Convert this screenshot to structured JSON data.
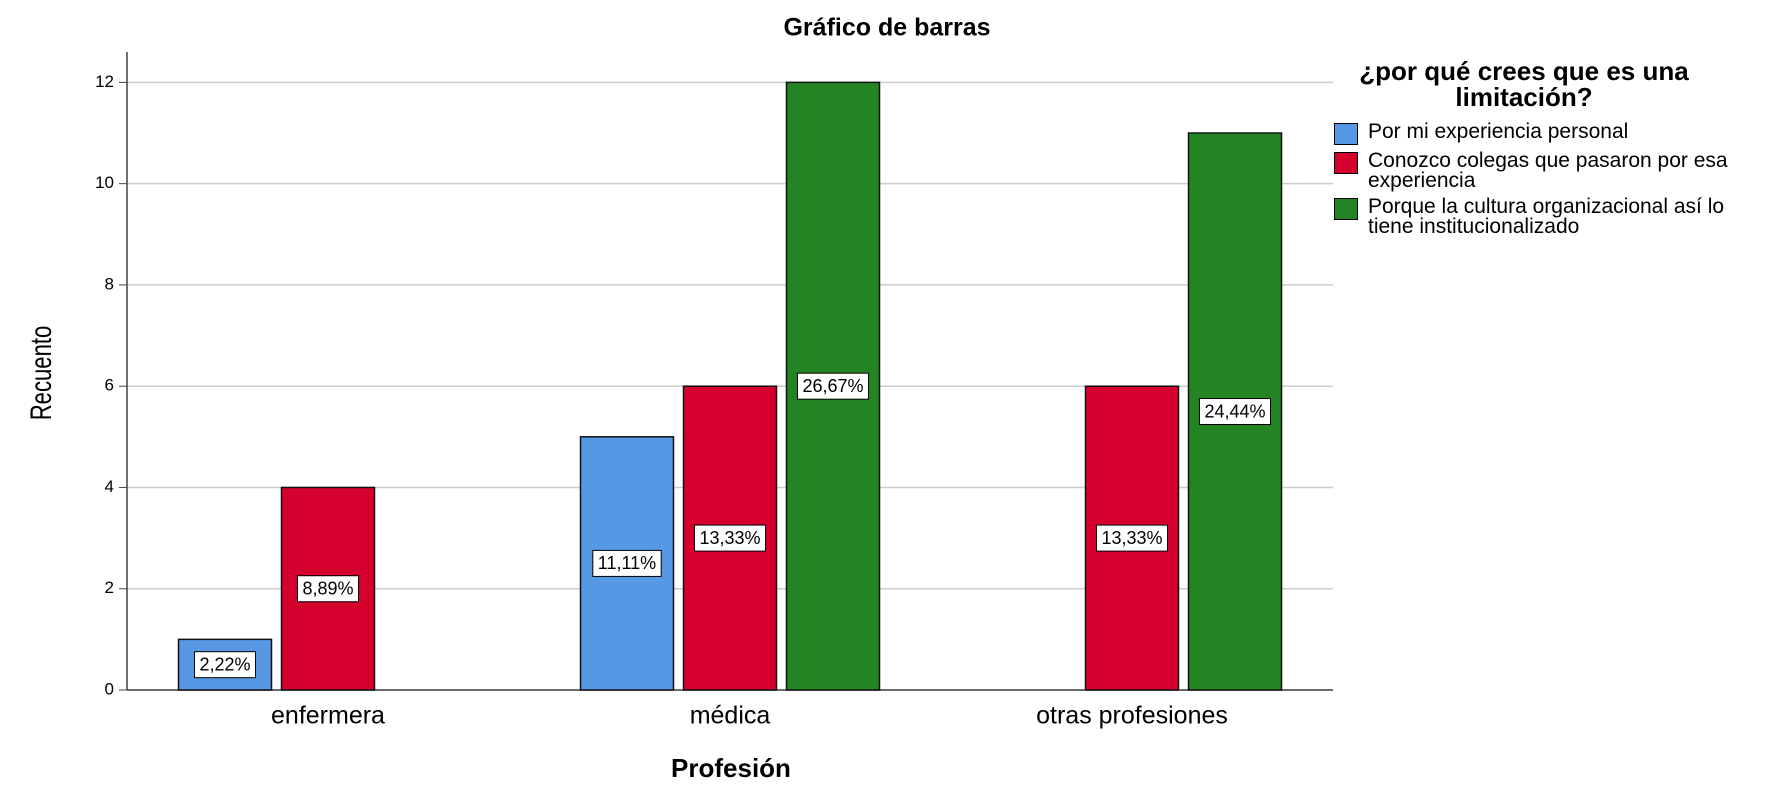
{
  "chart_data": {
    "type": "bar",
    "title": "Gráfico de barras",
    "x_label": "Profesión",
    "y_label": "Recuento",
    "categories": [
      "enfermera",
      "médica",
      "otras profesiones"
    ],
    "legend_title": "¿por qué crees que es una limitación?",
    "series": [
      {
        "name": "Por mi experiencia personal",
        "color": "#5698e4",
        "values": [
          1,
          5,
          null
        ],
        "percent_labels": [
          "2,22%",
          "11,11%",
          null
        ]
      },
      {
        "name": "Conozco colegas que pasaron por esa experiencia",
        "color": "#d6002e",
        "values": [
          4,
          6,
          6
        ],
        "percent_labels": [
          "8,89%",
          "13,33%",
          "13,33%"
        ]
      },
      {
        "name": "Porque la cultura organizacional así lo tiene institucionalizado",
        "color": "#248424",
        "values": [
          null,
          12,
          11
        ],
        "percent_labels": [
          null,
          "26,67%",
          "24,44%"
        ]
      }
    ],
    "ylim": [
      0,
      12.6
    ],
    "yticks": [
      0,
      2,
      4,
      6,
      8,
      10,
      12
    ],
    "grid": true,
    "legend": "right"
  }
}
